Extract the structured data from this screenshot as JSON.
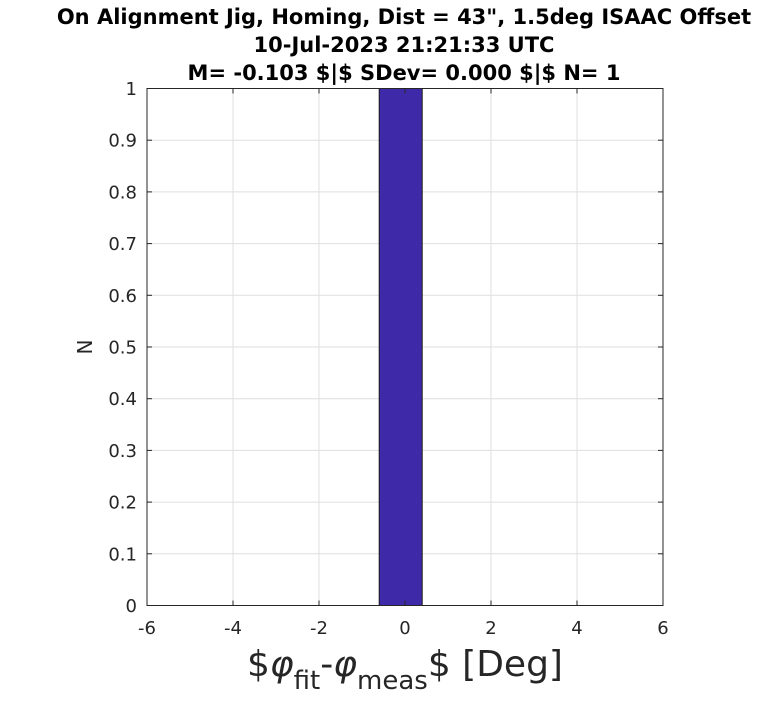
{
  "chart_data": {
    "type": "bar",
    "title_lines": [
      "On Alignment Jig, Homing, Dist = 43\", 1.5deg ISAAC Offset",
      "10-Jul-2023 21:21:33 UTC",
      "M= -0.103 $|$ SDev= 0.000 $|$ N= 1"
    ],
    "xlabel": {
      "prefix": "$",
      "phi1": "φ",
      "sub1": "fit",
      "dash": "-",
      "phi2": "φ",
      "sub2": "meas",
      "suffix": "$ [Deg]"
    },
    "ylabel": "N",
    "xlim": [
      -6,
      6
    ],
    "ylim": [
      0,
      1
    ],
    "xticks": [
      -6,
      -4,
      -2,
      0,
      2,
      4,
      6
    ],
    "xtick_labels": [
      "-6",
      "-4",
      "-2",
      "0",
      "2",
      "4",
      "6"
    ],
    "yticks": [
      0,
      0.1,
      0.2,
      0.3,
      0.4,
      0.5,
      0.6,
      0.7,
      0.8,
      0.9,
      1
    ],
    "ytick_labels": [
      "0",
      "0.1",
      "0.2",
      "0.3",
      "0.4",
      "0.5",
      "0.6",
      "0.7",
      "0.8",
      "0.9",
      "1"
    ],
    "grid": true,
    "bars": [
      {
        "x_start": -0.6,
        "x_end": 0.4,
        "value": 1
      }
    ],
    "bar_color": "#3e29a8",
    "legend": "none"
  }
}
